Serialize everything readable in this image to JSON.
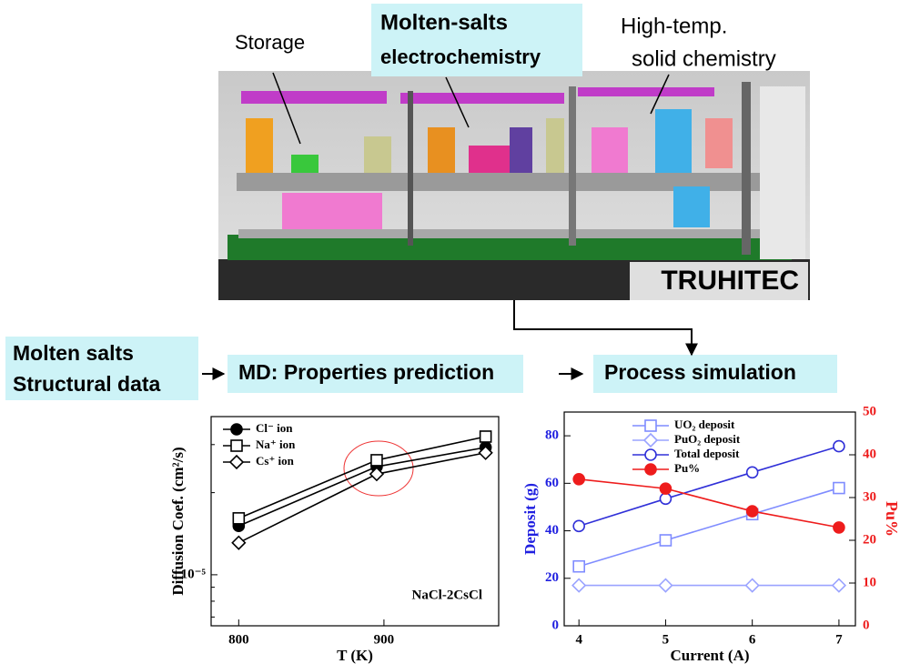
{
  "figure": {
    "storage": "Storage",
    "electrochem": [
      "Molten-salts",
      "electrochemistry"
    ],
    "high_temp": [
      "High-temp.",
      "solid chemistry"
    ],
    "facility": "TRUHITEC",
    "input": [
      "Molten salts",
      "Structural data"
    ],
    "md": "MD: Properties prediction",
    "process": "Process simulation"
  },
  "chart_data": [
    {
      "type": "line",
      "log_y": true,
      "xlabel": "T (K)",
      "ylabel": "Diffusion Coef. (cm²/s)",
      "annotation": "NaCl-2CsCl",
      "x": [
        800,
        895,
        970
      ],
      "xlim": [
        781,
        979
      ],
      "xticks": [
        800,
        900
      ],
      "ylim": [
        6.5e-06,
        3.8e-05
      ],
      "yticks": [
        {
          "value": 1e-05,
          "label": "10⁻⁵"
        }
      ],
      "axis_color": "#000000",
      "series": [
        {
          "name": "Cl⁻ ion",
          "color": "#000000",
          "marker": "filled-circle",
          "values": [
            1.51e-05,
            2.49e-05,
            2.93e-05
          ]
        },
        {
          "name": "Na⁺ ion",
          "color": "#000000",
          "marker": "square",
          "values": [
            1.61e-05,
            2.63e-05,
            3.21e-05
          ]
        },
        {
          "name": "Cs⁺ ion",
          "color": "#000000",
          "marker": "diamond",
          "values": [
            1.31e-05,
            2.34e-05,
            2.8e-05
          ]
        }
      ]
    },
    {
      "type": "line",
      "xlabel": "Current (A)",
      "ylabel": "Deposit (g)",
      "y2label": "Pu%",
      "x": [
        4,
        5,
        6,
        7
      ],
      "xlim": [
        3.83,
        7.19
      ],
      "xticks": [
        4,
        5,
        6,
        7
      ],
      "ylim": [
        0,
        90
      ],
      "yticks": [
        0,
        20,
        40,
        60,
        80
      ],
      "y2lim": [
        0,
        50
      ],
      "y2ticks": [
        0,
        10,
        20,
        30,
        40,
        50
      ],
      "axis_color": "#2020e0",
      "axis2_color": "#ee1c1c",
      "series": [
        {
          "name": "UO₂ deposit",
          "color": "#7f8cff",
          "marker": "square",
          "values": [
            25,
            36,
            47,
            58
          ]
        },
        {
          "name": "PuO₂ deposit",
          "color": "#9aa3ff",
          "marker": "diamond",
          "values": [
            17,
            17,
            17,
            17
          ]
        },
        {
          "name": "Total deposit",
          "color": "#3030d8",
          "marker": "circle",
          "values": [
            42,
            53.5,
            64.6,
            75.6
          ]
        },
        {
          "name": "Pu%",
          "color": "#ee1c1c",
          "marker": "filled-circle",
          "axis": "y2",
          "values": [
            34.3,
            32.1,
            26.8,
            23
          ]
        }
      ]
    }
  ]
}
